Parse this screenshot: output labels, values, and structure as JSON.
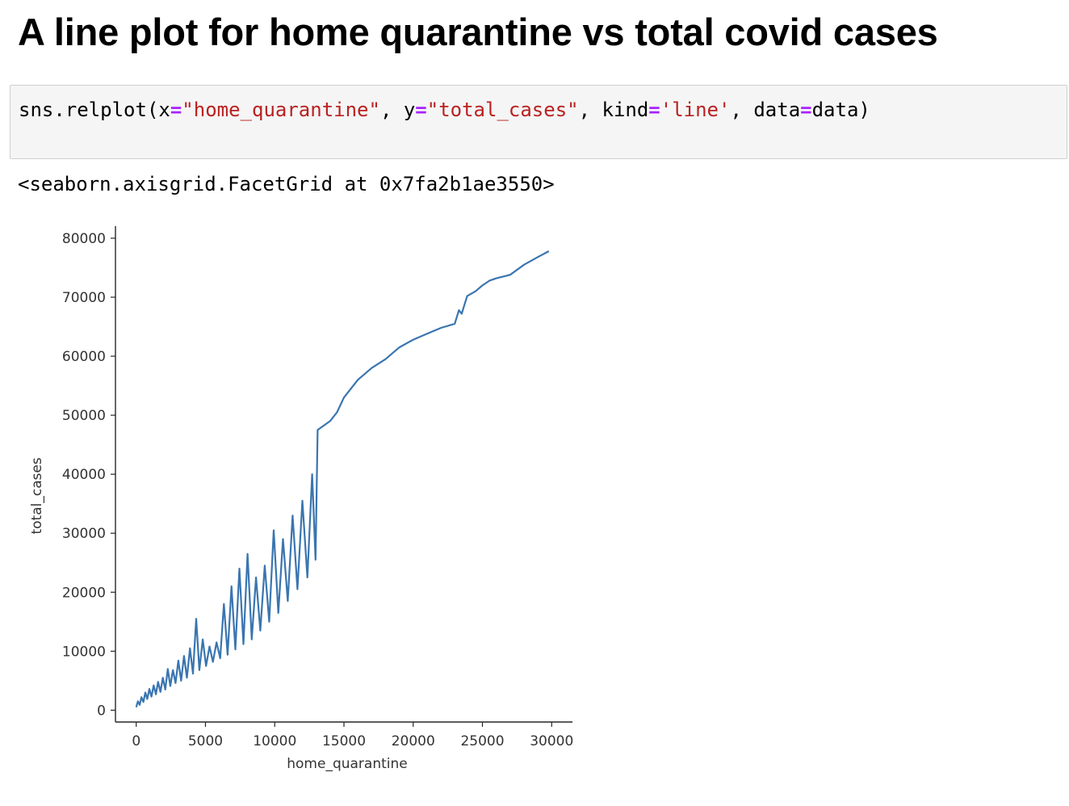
{
  "heading": "A line plot for home quarantine vs total covid cases",
  "code": {
    "tokens": [
      {
        "text": "sns.relplot(x",
        "kind": "plain"
      },
      {
        "text": "=",
        "kind": "op"
      },
      {
        "text": "\"home_quarantine\"",
        "kind": "str"
      },
      {
        "text": ", y",
        "kind": "plain"
      },
      {
        "text": "=",
        "kind": "op"
      },
      {
        "text": "\"total_cases\"",
        "kind": "str"
      },
      {
        "text": ", kind",
        "kind": "plain"
      },
      {
        "text": "=",
        "kind": "op"
      },
      {
        "text": "'line'",
        "kind": "str"
      },
      {
        "text": ", data",
        "kind": "plain"
      },
      {
        "text": "=",
        "kind": "op"
      },
      {
        "text": "data)",
        "kind": "plain"
      }
    ]
  },
  "output": "<seaborn.axisgrid.FacetGrid at 0x7fa2b1ae3550>",
  "colors": {
    "line": "#3a75b0",
    "axis": "#262626",
    "string": "#ba2121",
    "operator": "#aa22ff"
  },
  "chart_data": {
    "type": "line",
    "xlabel": "home_quarantine",
    "ylabel": "total_cases",
    "xlim": [
      -1500,
      31500
    ],
    "ylim": [
      -2000,
      81500
    ],
    "xticks": [
      0,
      5000,
      10000,
      15000,
      20000,
      25000,
      30000
    ],
    "yticks": [
      0,
      10000,
      20000,
      30000,
      40000,
      50000,
      60000,
      70000,
      80000
    ],
    "grid": false,
    "series": [
      {
        "x": [
          0,
          120,
          250,
          380,
          520,
          660,
          800,
          950,
          1100,
          1260,
          1420,
          1580,
          1750,
          1920,
          2100,
          2280,
          2460,
          2650,
          2840,
          3040,
          3240,
          3450,
          3660,
          3880,
          4100,
          4330,
          4560,
          4800,
          5040,
          5290,
          5540,
          5800,
          6060,
          6330,
          6600,
          6880,
          7160,
          7450,
          7740,
          8040,
          8340,
          8650,
          8960,
          9280,
          9600,
          9930,
          10260,
          10600,
          10940,
          11290,
          11640,
          12000,
          12360,
          12700,
          12950,
          13100,
          14000,
          14500,
          15000,
          16000,
          17000,
          18000,
          19000,
          20000,
          21000,
          22000,
          23000,
          23300,
          23500,
          23900,
          24500,
          25000,
          25500,
          26000,
          27000,
          28000,
          29000,
          29800
        ],
        "y": [
          500,
          1500,
          900,
          2200,
          1400,
          3000,
          1900,
          3600,
          2300,
          4200,
          2700,
          4800,
          3100,
          5500,
          3500,
          7000,
          4100,
          6800,
          4600,
          8400,
          5000,
          9200,
          5500,
          10500,
          6200,
          15500,
          6800,
          12000,
          7500,
          10800,
          8200,
          11500,
          8800,
          18000,
          9400,
          21000,
          10300,
          24000,
          11200,
          26500,
          12000,
          22500,
          13500,
          24500,
          15000,
          30500,
          16500,
          29000,
          18500,
          33000,
          20500,
          35500,
          22500,
          40000,
          25500,
          47500,
          49000,
          50500,
          53000,
          56000,
          58000,
          59500,
          61500,
          62800,
          63800,
          64800,
          65500,
          67800,
          67200,
          70200,
          71000,
          72000,
          72800,
          73200,
          73800,
          75500,
          76800,
          77800
        ]
      }
    ]
  }
}
